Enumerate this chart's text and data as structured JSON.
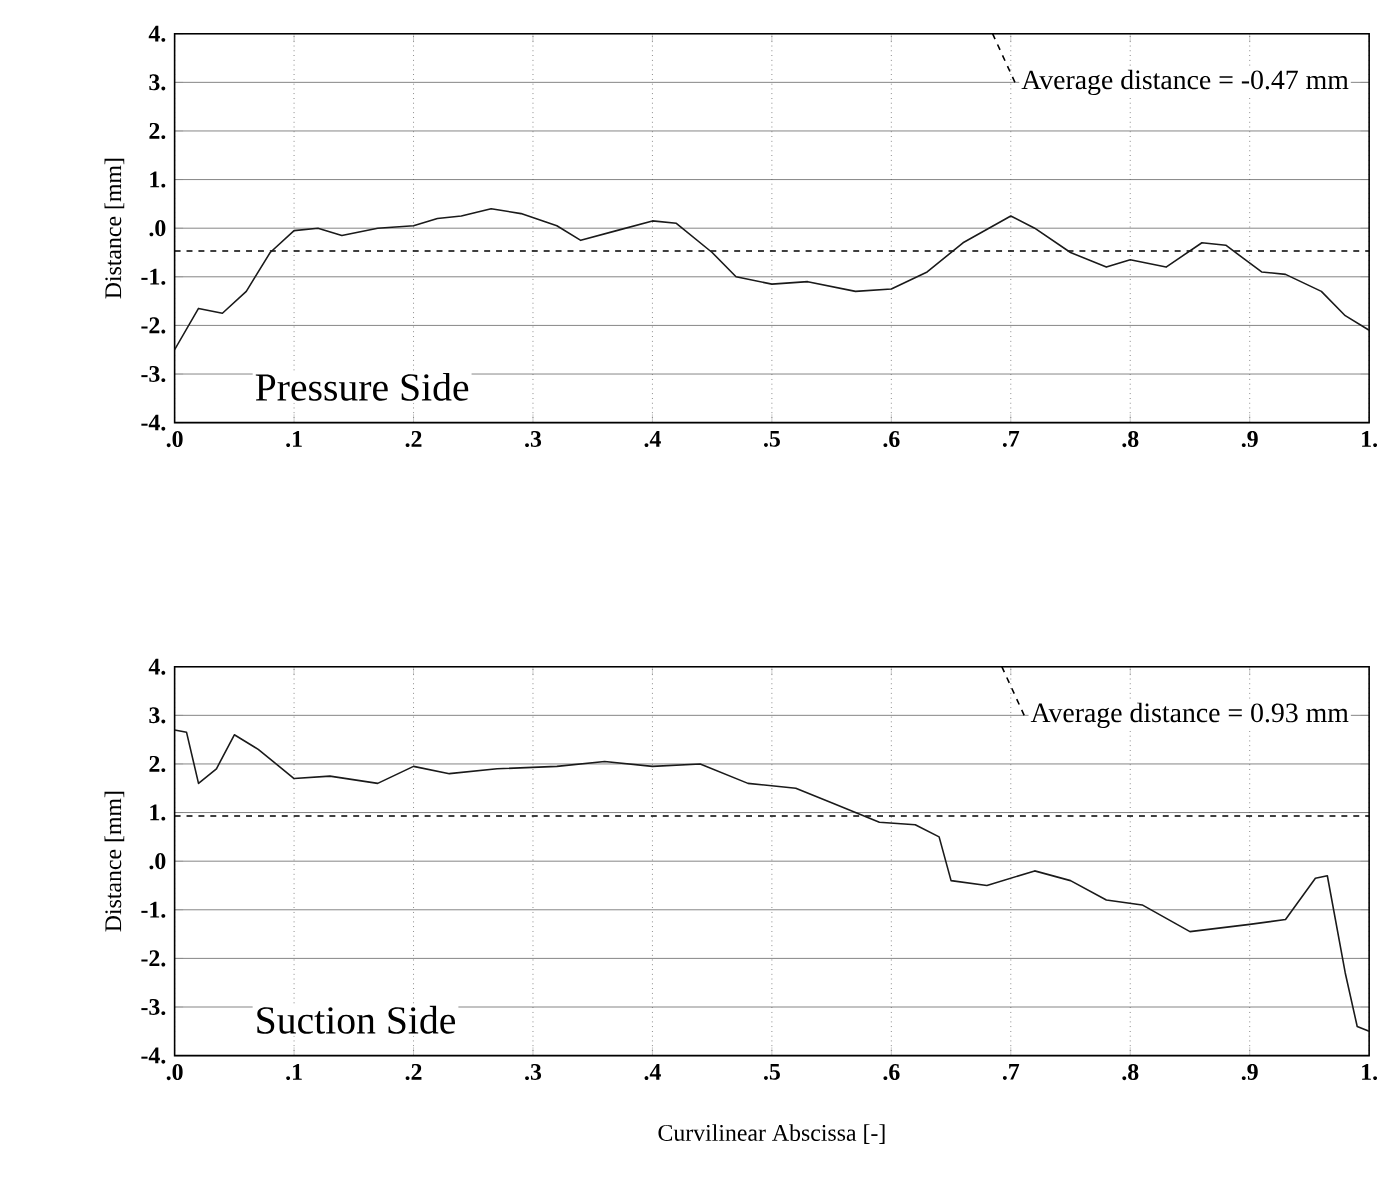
{
  "chart_data": [
    {
      "type": "line",
      "ylabel": "Distance [mm]",
      "xlim": [
        0,
        1
      ],
      "ylim": [
        -4,
        4
      ],
      "grid": true,
      "color": "#1a1a1a",
      "xticks": [
        {
          "value": 0,
          "label": ".0"
        },
        {
          "value": 0.1,
          "label": ".1"
        },
        {
          "value": 0.2,
          "label": ".2"
        },
        {
          "value": 0.3,
          "label": ".3"
        },
        {
          "value": 0.4,
          "label": ".4"
        },
        {
          "value": 0.5,
          "label": ".5"
        },
        {
          "value": 0.6,
          "label": ".6"
        },
        {
          "value": 0.7,
          "label": ".7"
        },
        {
          "value": 0.8,
          "label": ".8"
        },
        {
          "value": 0.9,
          "label": ".9"
        },
        {
          "value": 1,
          "label": "1."
        }
      ],
      "yticks": [
        {
          "value": -4,
          "label": "-4."
        },
        {
          "value": -3,
          "label": "-3."
        },
        {
          "value": -2,
          "label": "-2."
        },
        {
          "value": -1,
          "label": "-1."
        },
        {
          "value": 0,
          "label": ".0"
        },
        {
          "value": 1,
          "label": "1."
        },
        {
          "value": 2,
          "label": "2."
        },
        {
          "value": 3,
          "label": "3."
        },
        {
          "value": 4,
          "label": "4."
        }
      ],
      "x": [
        0,
        0.02,
        0.04,
        0.06,
        0.08,
        0.1,
        0.12,
        0.14,
        0.17,
        0.2,
        0.22,
        0.24,
        0.265,
        0.29,
        0.32,
        0.34,
        0.37,
        0.4,
        0.42,
        0.45,
        0.47,
        0.5,
        0.53,
        0.57,
        0.6,
        0.63,
        0.66,
        0.7,
        0.72,
        0.75,
        0.78,
        0.8,
        0.83,
        0.86,
        0.88,
        0.91,
        0.93,
        0.96,
        0.98,
        1.0
      ],
      "values": [
        -2.5,
        -1.65,
        -1.75,
        -1.3,
        -0.5,
        -0.05,
        0.0,
        -0.15,
        0.0,
        0.05,
        0.2,
        0.25,
        0.4,
        0.3,
        0.05,
        -0.25,
        -0.05,
        0.15,
        0.1,
        -0.5,
        -1.0,
        -1.15,
        -1.1,
        -1.3,
        -1.25,
        -0.9,
        -0.3,
        0.25,
        0.0,
        -0.5,
        -0.8,
        -0.65,
        -0.8,
        -0.3,
        -0.35,
        -0.9,
        -0.95,
        -1.3,
        -1.8,
        -2.1
      ],
      "ref_lines": [
        {
          "axis": "y",
          "value": -0.47,
          "label": "Average distance = -0.47 mm",
          "line_style": "dashed"
        }
      ],
      "annotations": [
        "Pressure Side"
      ]
    },
    {
      "type": "line",
      "ylabel": "Distance [mm]",
      "xlabel": "Curvilinear Abscissa [-]",
      "xlim": [
        0,
        1
      ],
      "ylim": [
        -4,
        4
      ],
      "grid": true,
      "color": "#1a1a1a",
      "xticks": [
        {
          "value": 0,
          "label": ".0"
        },
        {
          "value": 0.1,
          "label": ".1"
        },
        {
          "value": 0.2,
          "label": ".2"
        },
        {
          "value": 0.3,
          "label": ".3"
        },
        {
          "value": 0.4,
          "label": ".4"
        },
        {
          "value": 0.5,
          "label": ".5"
        },
        {
          "value": 0.6,
          "label": ".6"
        },
        {
          "value": 0.7,
          "label": ".7"
        },
        {
          "value": 0.8,
          "label": ".8"
        },
        {
          "value": 0.9,
          "label": ".9"
        },
        {
          "value": 1,
          "label": "1."
        }
      ],
      "yticks": [
        {
          "value": -4,
          "label": "-4."
        },
        {
          "value": -3,
          "label": "-3."
        },
        {
          "value": -2,
          "label": "-2."
        },
        {
          "value": -1,
          "label": "-1."
        },
        {
          "value": 0,
          "label": ".0"
        },
        {
          "value": 1,
          "label": "1."
        },
        {
          "value": 2,
          "label": "2."
        },
        {
          "value": 3,
          "label": "3."
        },
        {
          "value": 4,
          "label": "4."
        }
      ],
      "x": [
        0,
        0.01,
        0.02,
        0.035,
        0.05,
        0.07,
        0.1,
        0.13,
        0.17,
        0.2,
        0.23,
        0.27,
        0.32,
        0.36,
        0.4,
        0.44,
        0.48,
        0.52,
        0.55,
        0.59,
        0.62,
        0.64,
        0.65,
        0.68,
        0.72,
        0.75,
        0.78,
        0.81,
        0.85,
        0.9,
        0.93,
        0.955,
        0.965,
        0.98,
        0.99,
        1.0
      ],
      "values": [
        2.7,
        2.65,
        1.6,
        1.9,
        2.6,
        2.3,
        1.7,
        1.75,
        1.6,
        1.95,
        1.8,
        1.9,
        1.95,
        2.05,
        1.95,
        2.0,
        1.6,
        1.5,
        1.2,
        0.8,
        0.75,
        0.5,
        -0.4,
        -0.5,
        -0.2,
        -0.4,
        -0.8,
        -0.9,
        -1.45,
        -1.3,
        -1.2,
        -0.35,
        -0.3,
        -2.3,
        -3.4,
        -3.5
      ],
      "ref_lines": [
        {
          "axis": "y",
          "value": 0.93,
          "label": "Average distance = 0.93 mm",
          "line_style": "dashed"
        }
      ],
      "annotations": [
        "Suction Side"
      ]
    }
  ]
}
